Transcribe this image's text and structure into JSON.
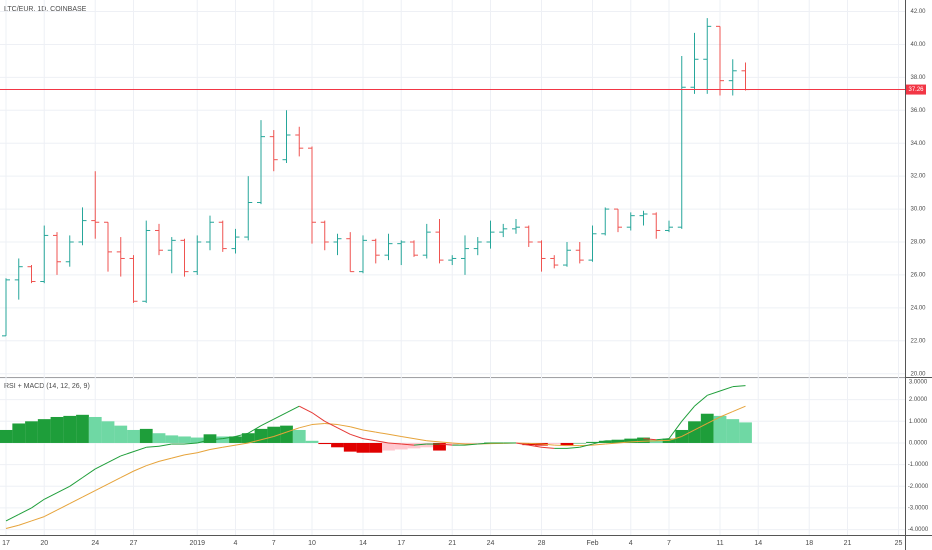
{
  "chart_data": [
    {
      "type": "ohlc",
      "title": "LTC/EUR, 1D, COINBASE",
      "categories": [
        "17",
        null,
        null,
        "20",
        null,
        null,
        null,
        "24",
        null,
        null,
        "27",
        null,
        null,
        null,
        null,
        "2019",
        null,
        null,
        "4",
        null,
        null,
        "7",
        null,
        null,
        "10",
        null,
        null,
        null,
        "14",
        null,
        null,
        "17",
        null,
        null,
        null,
        "21",
        null,
        null,
        "24",
        null,
        null,
        null,
        "28",
        null,
        null,
        null,
        "Feb",
        null,
        null,
        "4",
        null,
        null,
        "7",
        null,
        null,
        null,
        "11",
        null,
        null,
        "14",
        null,
        null,
        null,
        "18",
        null,
        null,
        "21",
        null,
        null,
        null,
        "25",
        null
      ],
      "open": [
        22.3,
        25.7,
        26.5,
        25.6,
        28.4,
        26.8,
        28.0,
        29.3,
        29.2,
        27.4,
        27.0,
        24.4,
        28.7,
        27.5,
        28.1,
        26.2,
        28.0,
        29.2,
        27.6,
        28.3,
        30.4,
        34.4,
        33.0,
        34.5,
        33.7,
        29.2,
        28.0,
        28.2,
        26.2,
        28.1,
        27.2,
        27.9,
        28.0,
        27.2,
        28.6,
        26.9,
        27.0,
        27.6,
        28.0,
        28.6,
        28.8,
        28.9,
        28.0,
        27.0,
        26.6,
        27.5,
        26.9,
        28.5,
        30.0,
        28.9,
        29.6,
        29.7,
        28.7,
        28.9,
        37.4,
        39.1,
        41.1,
        37.8,
        38.4,
        null,
        null,
        null,
        null,
        null,
        null,
        null,
        null,
        null,
        null,
        null,
        null,
        null
      ],
      "high": [
        25.8,
        27.0,
        26.6,
        29.0,
        28.6,
        28.4,
        30.1,
        32.3,
        29.2,
        28.3,
        27.2,
        29.3,
        29.1,
        28.3,
        28.2,
        28.4,
        29.6,
        29.3,
        28.8,
        32.0,
        35.4,
        34.8,
        36.0,
        35.0,
        33.8,
        29.3,
        28.5,
        28.6,
        28.4,
        28.2,
        28.5,
        28.1,
        28.1,
        29.1,
        29.4,
        27.2,
        28.4,
        28.3,
        29.3,
        29.1,
        29.4,
        29.0,
        28.1,
        27.2,
        28.0,
        28.0,
        29.0,
        30.1,
        30.0,
        29.8,
        29.9,
        29.8,
        29.3,
        39.3,
        40.7,
        41.6,
        41.1,
        39.1,
        38.9,
        null,
        null,
        null,
        null,
        null,
        null,
        null,
        null,
        null,
        null,
        null,
        null,
        null
      ],
      "low": [
        22.3,
        24.5,
        25.5,
        25.5,
        26.0,
        26.5,
        27.8,
        28.2,
        26.2,
        25.9,
        24.3,
        24.3,
        27.2,
        26.1,
        25.9,
        26.0,
        27.5,
        27.4,
        27.3,
        28.1,
        30.3,
        32.3,
        32.8,
        33.2,
        27.9,
        27.5,
        27.2,
        26.2,
        26.1,
        26.7,
        26.9,
        26.6,
        27.1,
        27.0,
        26.7,
        26.6,
        26.0,
        27.2,
        27.6,
        28.3,
        28.5,
        27.7,
        26.2,
        26.4,
        26.5,
        26.7,
        26.8,
        28.4,
        28.6,
        28.7,
        29.0,
        28.2,
        28.6,
        28.8,
        37.0,
        37.0,
        36.9,
        36.9,
        37.2,
        null,
        null,
        null,
        null,
        null,
        null,
        null,
        null,
        null,
        null,
        null,
        null,
        null
      ],
      "close": [
        25.7,
        26.5,
        25.6,
        28.4,
        26.8,
        28.0,
        29.3,
        29.2,
        27.4,
        27.0,
        24.4,
        28.7,
        27.5,
        28.1,
        26.2,
        28.0,
        29.2,
        27.6,
        28.3,
        30.4,
        34.4,
        33.0,
        34.5,
        33.7,
        29.2,
        28.0,
        28.2,
        26.2,
        28.1,
        27.2,
        27.9,
        28.0,
        27.2,
        28.6,
        26.9,
        27.0,
        27.6,
        28.0,
        28.6,
        28.8,
        28.9,
        28.0,
        27.0,
        26.6,
        27.5,
        26.9,
        28.5,
        30.0,
        28.9,
        29.6,
        29.7,
        28.7,
        28.9,
        37.4,
        39.1,
        41.1,
        37.8,
        38.4,
        37.26,
        null,
        null,
        null,
        null,
        null,
        null,
        null,
        null,
        null,
        null,
        null,
        null,
        null
      ],
      "up_color": "#26a69a",
      "down_color": "#ef5350",
      "price_line": 37.26,
      "price_line_color": "#f23645",
      "ylim": [
        19.8,
        42.7
      ],
      "yticks": [
        {
          "value": 20,
          "label": "20.00"
        },
        {
          "value": 22,
          "label": "22.00"
        },
        {
          "value": 24,
          "label": "24.00"
        },
        {
          "value": 26,
          "label": "26.00"
        },
        {
          "value": 28,
          "label": "28.00"
        },
        {
          "value": 30,
          "label": "30.00"
        },
        {
          "value": 32,
          "label": "32.00"
        },
        {
          "value": 34,
          "label": "34.00"
        },
        {
          "value": 36,
          "label": "36.00"
        },
        {
          "value": 38,
          "label": "38.00"
        },
        {
          "value": 40,
          "label": "40.00"
        },
        {
          "value": 42,
          "label": "42.00"
        }
      ],
      "grid": true
    },
    {
      "type": "macd",
      "title": "RSI + MACD (14, 12, 26, 9)",
      "histogram": [
        0.6,
        0.9,
        1.0,
        1.1,
        1.2,
        1.25,
        1.3,
        1.2,
        1.0,
        0.8,
        0.6,
        0.65,
        0.45,
        0.35,
        0.3,
        0.25,
        0.4,
        0.3,
        0.3,
        0.45,
        0.65,
        0.75,
        0.8,
        0.6,
        0.1,
        -0.05,
        -0.2,
        -0.4,
        -0.45,
        -0.45,
        -0.35,
        -0.3,
        -0.25,
        -0.2,
        -0.35,
        -0.1,
        -0.05,
        -0.02,
        0.02,
        0.0,
        -0.02,
        -0.1,
        -0.12,
        -0.05,
        -0.1,
        0.0,
        0.05,
        0.1,
        0.15,
        0.2,
        0.25,
        0.15,
        0.2,
        0.6,
        1.0,
        1.35,
        1.25,
        1.1,
        0.95,
        null,
        null,
        null,
        null,
        null,
        null,
        null,
        null,
        null,
        null,
        null,
        null,
        null
      ],
      "macd": [
        -3.6,
        -3.3,
        -3.0,
        -2.6,
        -2.3,
        -2.0,
        -1.6,
        -1.2,
        -0.9,
        -0.6,
        -0.4,
        -0.2,
        -0.15,
        -0.05,
        -0.05,
        0.0,
        0.15,
        0.2,
        0.3,
        0.45,
        0.8,
        1.1,
        1.4,
        1.7,
        1.4,
        1.0,
        0.7,
        0.4,
        0.2,
        0.1,
        0.0,
        -0.05,
        -0.1,
        -0.05,
        -0.05,
        -0.1,
        -0.1,
        -0.05,
        0.0,
        0.0,
        0.0,
        -0.1,
        -0.2,
        -0.25,
        -0.25,
        -0.2,
        -0.05,
        0.1,
        0.1,
        0.15,
        0.2,
        0.15,
        0.2,
        1.0,
        1.7,
        2.2,
        2.4,
        2.6,
        2.65,
        null,
        null,
        null,
        null,
        null,
        null,
        null,
        null,
        null,
        null,
        null,
        null,
        null
      ],
      "signal": [
        -3.95,
        -3.8,
        -3.6,
        -3.4,
        -3.1,
        -2.8,
        -2.5,
        -2.2,
        -1.9,
        -1.6,
        -1.3,
        -1.05,
        -0.85,
        -0.7,
        -0.55,
        -0.45,
        -0.3,
        -0.2,
        -0.1,
        0.0,
        0.15,
        0.3,
        0.5,
        0.7,
        0.85,
        0.9,
        0.85,
        0.75,
        0.6,
        0.5,
        0.4,
        0.3,
        0.2,
        0.1,
        0.05,
        0.0,
        -0.05,
        -0.05,
        -0.03,
        -0.02,
        0.0,
        -0.02,
        -0.05,
        -0.1,
        -0.12,
        -0.12,
        -0.1,
        -0.05,
        0.0,
        0.05,
        0.08,
        0.1,
        0.12,
        0.3,
        0.6,
        0.9,
        1.2,
        1.45,
        1.7,
        null,
        null,
        null,
        null,
        null,
        null,
        null,
        null,
        null,
        null,
        null,
        null,
        null
      ],
      "colors": {
        "grow_above": "#1e9e3a",
        "fall_above": "#6fd8a4",
        "grow_below": "#ffc8cf",
        "fall_below": "#e00000",
        "macd_up": "#1f9e3a",
        "macd_down": "#e53935",
        "signal": "#e6a33a"
      },
      "ylim": [
        -4.25,
        3.0
      ],
      "yticks": [
        {
          "value": 3,
          "label": "3.0000"
        },
        {
          "value": 2,
          "label": "2.0000"
        },
        {
          "value": 1,
          "label": "1.0000"
        },
        {
          "value": 0,
          "label": "0.0000"
        },
        {
          "value": -1,
          "label": "-1.0000"
        },
        {
          "value": -2,
          "label": "-2.0000"
        },
        {
          "value": -3,
          "label": "-3.0000"
        },
        {
          "value": -4,
          "label": "-4.0000"
        }
      ],
      "grid": true
    }
  ]
}
